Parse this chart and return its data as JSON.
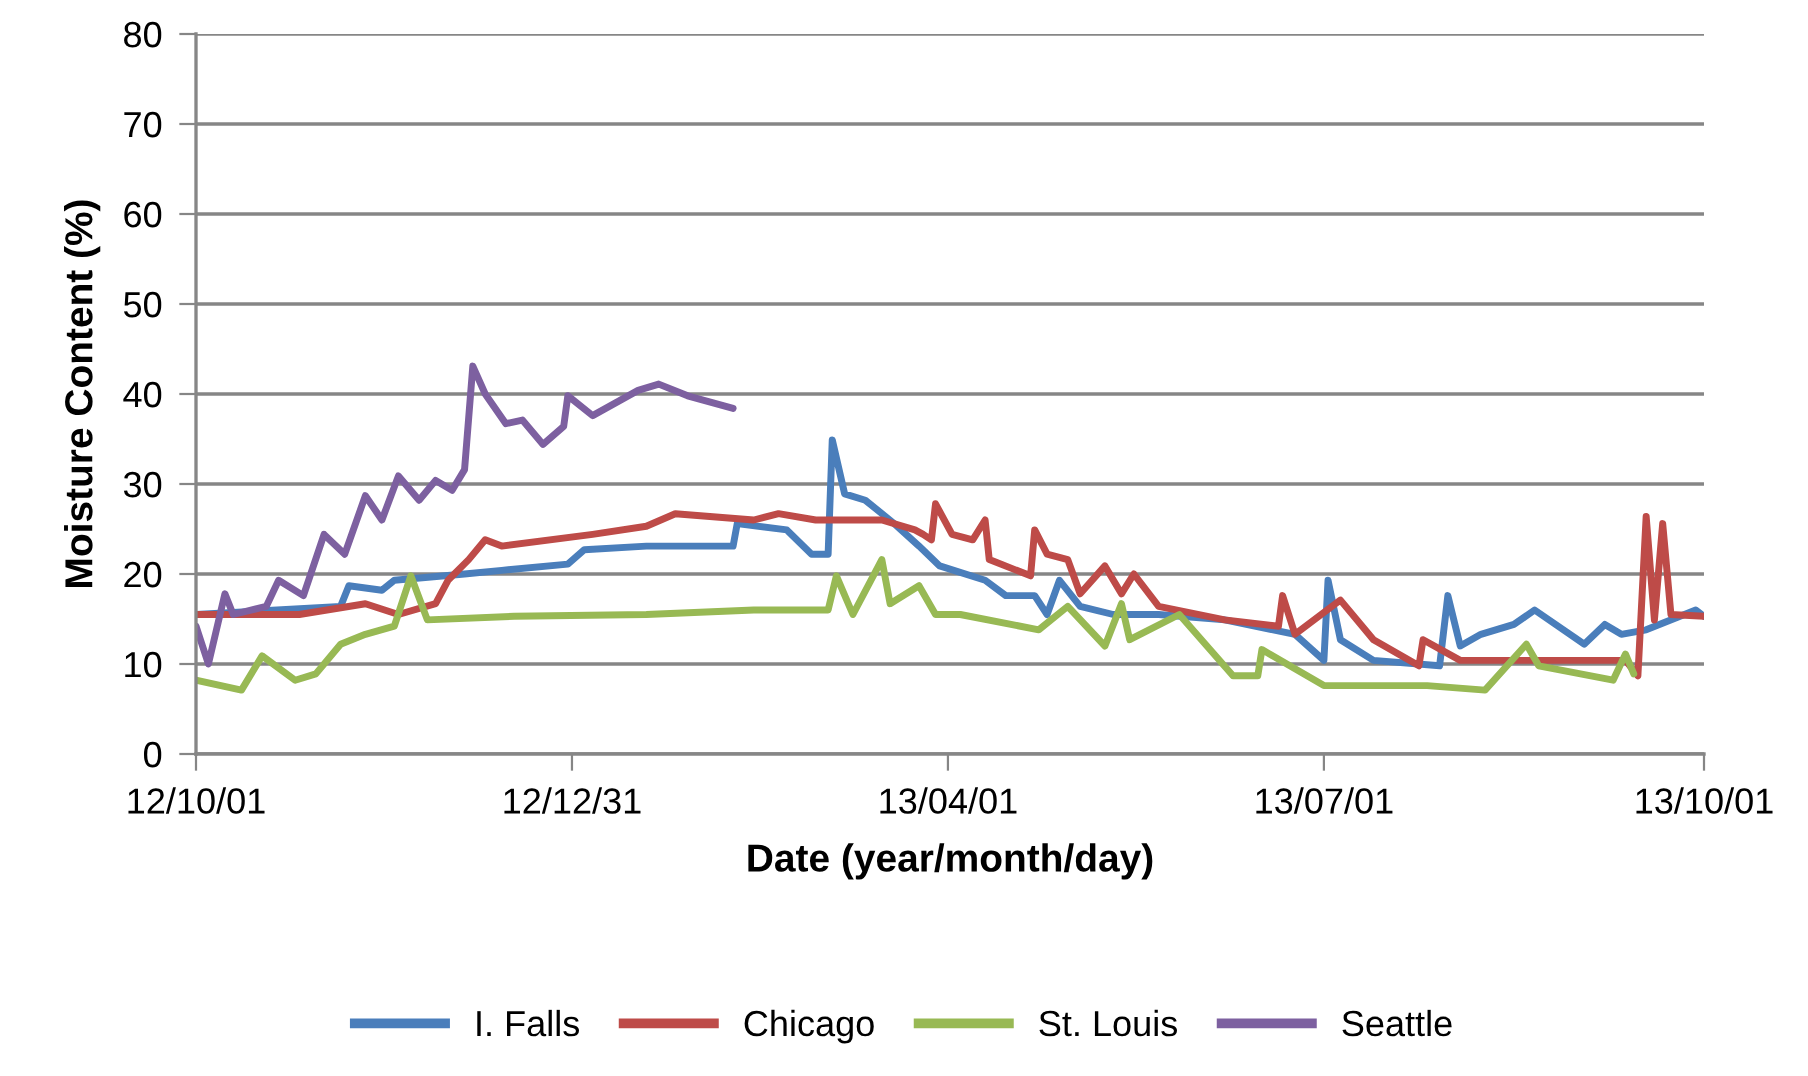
{
  "chart_data": {
    "type": "line",
    "xlabel": "Date (year/month/day)",
    "ylabel": "Moisture Content (%)",
    "xlim": [
      "2012-10-01",
      "2013-10-01"
    ],
    "xticks": [
      {
        "value": "2012-10-01",
        "label": "12/10/01"
      },
      {
        "value": "2012-12-31",
        "label": "12/12/31"
      },
      {
        "value": "2013-04-01",
        "label": "13/04/01"
      },
      {
        "value": "2013-07-01",
        "label": "13/07/01"
      },
      {
        "value": "2013-10-01",
        "label": "13/10/01"
      }
    ],
    "ylim": [
      0,
      80
    ],
    "yticks": [
      0,
      10,
      20,
      30,
      40,
      50,
      60,
      70,
      80
    ],
    "grid": "y",
    "legend": "bottom",
    "marker": "none",
    "line_style": "solid",
    "series": [
      {
        "name": "I. Falls",
        "color": "#4a7ebb",
        "x": [
          "2012-10-01",
          "2012-11-05",
          "2012-11-07",
          "2012-11-15",
          "2012-11-18",
          "2012-12-05",
          "2012-12-14",
          "2012-12-30",
          "2013-01-03",
          "2013-01-18",
          "2013-02-08",
          "2013-02-09",
          "2013-02-21",
          "2013-02-27",
          "2013-03-03",
          "2013-03-04",
          "2013-03-07",
          "2013-03-12",
          "2013-03-19",
          "2013-03-25",
          "2013-03-30",
          "2013-04-10",
          "2013-04-15",
          "2013-04-22",
          "2013-04-25",
          "2013-04-28",
          "2013-05-03",
          "2013-05-11",
          "2013-05-22",
          "2013-06-07",
          "2013-06-24",
          "2013-07-01",
          "2013-07-02",
          "2013-07-05",
          "2013-07-13",
          "2013-07-29",
          "2013-07-31",
          "2013-08-03",
          "2013-08-08",
          "2013-08-16",
          "2013-08-21",
          "2013-09-02",
          "2013-09-07",
          "2013-09-11",
          "2013-09-17",
          "2013-09-29",
          "2013-10-01"
        ],
        "values": [
          15.5,
          16.4,
          18.7,
          18.2,
          19.3,
          20,
          20.4,
          21.1,
          22.7,
          23.1,
          23.1,
          25.6,
          24.9,
          22.2,
          22.2,
          34.9,
          28.9,
          28.2,
          25.6,
          23.1,
          20.9,
          19.3,
          17.6,
          17.6,
          15.5,
          19.3,
          16.4,
          15.5,
          15.5,
          14.9,
          13.3,
          10.4,
          19.3,
          12.7,
          10.4,
          9.8,
          17.6,
          12,
          13.3,
          14.4,
          16,
          12.2,
          14.4,
          13.3,
          13.8,
          16,
          15.3
        ]
      },
      {
        "name": "Chicago",
        "color": "#be4b48",
        "x": [
          "2012-10-01",
          "2012-10-26",
          "2012-11-11",
          "2012-11-19",
          "2012-11-28",
          "2012-12-01",
          "2012-12-06",
          "2012-12-10",
          "2012-12-14",
          "2013-01-05",
          "2013-01-18",
          "2013-01-25",
          "2013-02-13",
          "2013-02-19",
          "2013-02-28",
          "2013-03-16",
          "2013-03-24",
          "2013-03-26",
          "2013-03-28",
          "2013-03-29",
          "2013-04-02",
          "2013-04-07",
          "2013-04-10",
          "2013-04-11",
          "2013-04-21",
          "2013-04-22",
          "2013-04-25",
          "2013-04-30",
          "2013-05-03",
          "2013-05-09",
          "2013-05-13",
          "2013-05-16",
          "2013-05-22",
          "2013-06-07",
          "2013-06-20",
          "2013-06-21",
          "2013-06-24",
          "2013-07-05",
          "2013-07-13",
          "2013-07-24",
          "2013-07-25",
          "2013-08-03",
          "2013-08-19",
          "2013-09-12",
          "2013-09-15",
          "2013-09-17",
          "2013-09-19",
          "2013-09-21",
          "2013-09-23",
          "2013-10-01"
        ],
        "values": [
          15.5,
          15.5,
          16.7,
          15.5,
          16.7,
          19.3,
          21.6,
          23.8,
          23.1,
          24.4,
          25.3,
          26.7,
          26,
          26.7,
          26,
          26,
          24.9,
          24.4,
          23.8,
          27.8,
          24.4,
          23.8,
          26,
          21.6,
          19.8,
          24.9,
          22.2,
          21.6,
          17.8,
          20.9,
          17.8,
          20,
          16.4,
          14.9,
          14.2,
          17.6,
          13.3,
          17.1,
          12.7,
          9.8,
          12.7,
          10.4,
          10.4,
          10.4,
          8.7,
          26.4,
          14.9,
          25.6,
          15.5,
          15.3
        ]
      },
      {
        "name": "St. Louis",
        "color": "#98b954",
        "x": [
          "2012-10-01",
          "2012-10-12",
          "2012-10-17",
          "2012-10-25",
          "2012-10-30",
          "2012-11-05",
          "2012-11-11",
          "2012-11-18",
          "2012-11-22",
          "2012-11-26",
          "2012-12-17",
          "2013-01-18",
          "2013-02-13",
          "2013-03-03",
          "2013-03-05",
          "2013-03-09",
          "2013-03-16",
          "2013-03-18",
          "2013-03-25",
          "2013-03-29",
          "2013-04-04",
          "2013-04-23",
          "2013-04-30",
          "2013-05-09",
          "2013-05-13",
          "2013-05-15",
          "2013-05-27",
          "2013-06-09",
          "2013-06-15",
          "2013-06-16",
          "2013-07-01",
          "2013-07-26",
          "2013-08-09",
          "2013-08-19",
          "2013-08-22",
          "2013-09-09",
          "2013-09-12",
          "2013-09-14"
        ],
        "values": [
          8.2,
          7.1,
          10.9,
          8.2,
          8.9,
          12.2,
          13.3,
          14.2,
          19.8,
          14.9,
          15.3,
          15.5,
          16,
          16,
          19.8,
          15.5,
          21.6,
          16.7,
          18.7,
          15.5,
          15.5,
          13.8,
          16.4,
          12,
          16.7,
          12.7,
          15.5,
          8.7,
          8.7,
          11.6,
          7.6,
          7.6,
          7.1,
          12.2,
          9.8,
          8.2,
          11.1,
          8.9
        ]
      },
      {
        "name": "Seattle",
        "color": "#7d60a0",
        "x": [
          "2012-10-01",
          "2012-10-04",
          "2012-10-08",
          "2012-10-10",
          "2012-10-18",
          "2012-10-21",
          "2012-10-27",
          "2012-11-01",
          "2012-11-06",
          "2012-11-11",
          "2012-11-15",
          "2012-11-19",
          "2012-11-24",
          "2012-11-28",
          "2012-12-02",
          "2012-12-05",
          "2012-12-07",
          "2012-12-10",
          "2012-12-15",
          "2012-12-19",
          "2012-12-24",
          "2012-12-29",
          "2012-12-30",
          "2013-01-05",
          "2013-01-16",
          "2013-01-21",
          "2013-01-28",
          "2013-02-08"
        ],
        "values": [
          14.2,
          10,
          17.8,
          15.5,
          16.4,
          19.3,
          17.6,
          24.4,
          22.2,
          28.7,
          26,
          30.9,
          28.2,
          30.4,
          29.3,
          31.6,
          43.1,
          40,
          36.7,
          37.1,
          34.4,
          36.4,
          39.8,
          37.6,
          40.4,
          41.1,
          39.8,
          38.4
        ]
      }
    ]
  }
}
